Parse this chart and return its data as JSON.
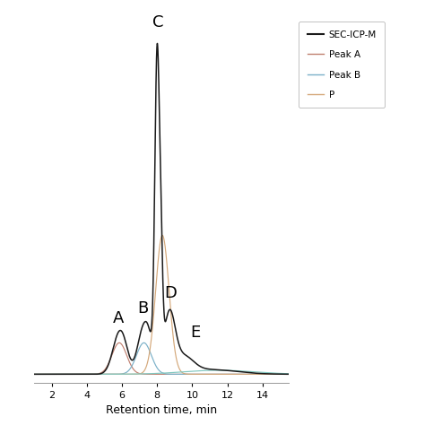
{
  "xlabel": "Retention time, min",
  "xlim": [
    1,
    15.5
  ],
  "ylim": [
    -0.025,
    1.08
  ],
  "background_color": "#ffffff",
  "sec_icp_ms_color": "#1a1a1a",
  "peak_a_color": "#c08070",
  "peak_b_color": "#7ab0c8",
  "peak_c_color": "#d4a87a",
  "peak_e_color": "#82c8c0",
  "xticks": [
    2,
    4,
    6,
    8,
    10,
    12,
    14
  ],
  "label_positions": [
    [
      "A",
      5.8,
      0.145
    ],
    [
      "B",
      7.2,
      0.175
    ],
    [
      "C",
      8.05,
      1.04
    ],
    [
      "D",
      8.75,
      0.22
    ],
    [
      "E",
      10.2,
      0.1
    ]
  ],
  "legend_labels": [
    "SEC-ICP-M",
    "Peak A",
    "Peak B",
    "P"
  ],
  "legend_colors": [
    "#1a1a1a",
    "#c08070",
    "#7ab0c8",
    "#d4a87a"
  ]
}
